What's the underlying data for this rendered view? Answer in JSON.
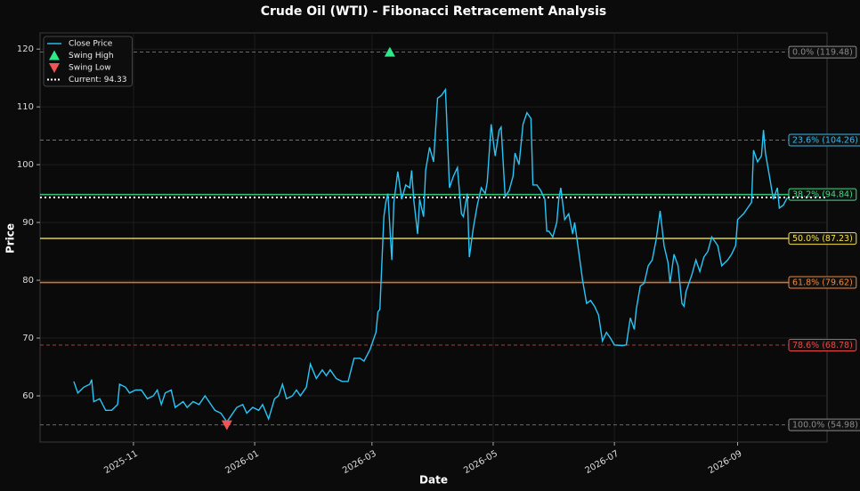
{
  "chart_data": {
    "type": "line",
    "title": "Crude Oil (WTI) - Fibonacci Retracement Analysis",
    "xlabel": "Date",
    "ylabel": "Price",
    "xlim": [
      14,
      410
    ],
    "ylim": [
      52.0,
      122.8
    ],
    "xticks": [
      {
        "value": 61,
        "label": "2025-11"
      },
      {
        "value": 122,
        "label": "2026-01"
      },
      {
        "value": 181,
        "label": "2026-03"
      },
      {
        "value": 242,
        "label": "2026-05"
      },
      {
        "value": 303,
        "label": "2026-07"
      },
      {
        "value": 365,
        "label": "2026-09"
      }
    ],
    "yticks": [
      60,
      70,
      80,
      90,
      100,
      110,
      120
    ],
    "grid": true,
    "legend": "upper left",
    "series": [
      {
        "name": "Close Price",
        "color": "#29c5f6",
        "x": [
          31,
          33,
          36,
          39,
          40,
          41,
          44,
          47,
          50,
          53,
          54,
          57,
          59,
          62,
          65,
          68,
          71,
          73,
          75,
          77,
          80,
          82,
          86,
          88,
          91,
          94,
          97,
          99,
          102,
          105,
          108,
          110,
          113,
          116,
          118,
          121,
          124,
          126,
          129,
          132,
          134,
          136,
          138,
          141,
          143,
          145,
          148,
          150,
          153,
          156,
          158,
          160,
          163,
          166,
          169,
          172,
          175,
          177,
          180,
          183,
          184,
          185,
          187,
          188,
          189,
          191,
          192,
          194,
          196,
          198,
          200,
          201,
          202,
          204,
          205,
          207,
          208,
          210,
          212,
          214,
          216,
          218,
          220,
          222,
          224,
          226,
          227,
          229,
          230,
          232,
          234,
          236,
          238,
          239,
          241,
          243,
          245,
          246,
          248,
          250,
          252,
          253,
          255,
          257,
          259,
          261,
          262,
          264,
          266,
          268,
          269,
          270,
          272,
          274,
          275,
          276,
          278,
          280,
          282,
          283,
          285,
          287,
          289,
          291,
          293,
          295,
          297,
          299,
          301,
          303,
          304,
          307,
          309,
          311,
          313,
          314,
          316,
          318,
          320,
          322,
          324,
          326,
          328,
          330,
          331,
          333,
          335,
          337,
          338,
          339,
          342,
          344,
          346,
          348,
          350,
          352,
          355,
          357,
          360,
          362,
          364,
          365,
          368,
          370,
          372,
          373,
          375,
          377,
          378,
          379,
          381,
          383,
          385,
          386,
          388,
          390
        ],
        "values": [
          62.5,
          60.5,
          61.5,
          62,
          62.8,
          59,
          59.5,
          57.5,
          57.5,
          58.5,
          62,
          61.5,
          60.5,
          61,
          61,
          59.5,
          60,
          61,
          58.5,
          60.5,
          61,
          58,
          59,
          58,
          59,
          58.5,
          60,
          59,
          57.5,
          57,
          55.5,
          56.5,
          58,
          58.5,
          57,
          58,
          57.5,
          58.5,
          56,
          59.5,
          60,
          62,
          59.5,
          60,
          61,
          60,
          61.5,
          65.5,
          63,
          64.5,
          63.5,
          64.5,
          63,
          62.5,
          62.5,
          66.5,
          66.5,
          66,
          68,
          71,
          74.5,
          75,
          91,
          93.5,
          95,
          83.5,
          93.5,
          98.8,
          94,
          96.5,
          96,
          99,
          94,
          88,
          94,
          91,
          99,
          103,
          100.5,
          111.5,
          112,
          113,
          96,
          98,
          99.5,
          91.5,
          91,
          95,
          84,
          89,
          93,
          96,
          95,
          97,
          107,
          101.5,
          106,
          106.5,
          94.5,
          95.5,
          98,
          102,
          100,
          107,
          109,
          108,
          96.5,
          96.5,
          95.5,
          94,
          88.5,
          88.5,
          87.5,
          90,
          94,
          96,
          90.5,
          91.5,
          88,
          90,
          85,
          80,
          76,
          76.5,
          75.5,
          74,
          69.5,
          71,
          70,
          68.8,
          68.78,
          68.7,
          68.8,
          73.5,
          71.5,
          75,
          79,
          79.5,
          82.5,
          83.5,
          87,
          92,
          86,
          83,
          79.5,
          84.5,
          82.5,
          76,
          75.5,
          78,
          81,
          83.5,
          81.5,
          84,
          85,
          87.5,
          86,
          82.5,
          83.5,
          84.5,
          86,
          90.5,
          91.5,
          92.5,
          93.5,
          102.5,
          100.5,
          101.5,
          106,
          102,
          98,
          94,
          96,
          92.5,
          93,
          94.3
        ]
      }
    ],
    "swing_high": {
      "name": "Swing High",
      "color": "#2ee88a",
      "x": 190,
      "value": 119.48
    },
    "swing_low": {
      "name": "Swing Low",
      "color": "#f05454",
      "x": 108,
      "value": 54.98
    },
    "current": {
      "name": "Current: 94.33",
      "color": "#ffffff",
      "value": 94.33
    },
    "levels": [
      {
        "label": "0.0% (119.48)",
        "value": 119.48,
        "color": "#8a8a8a",
        "style": "dashed"
      },
      {
        "label": "23.6% (104.26)",
        "value": 104.26,
        "color": "#3bb6e8",
        "style": "dashed"
      },
      {
        "label": "38.2% (94.84)",
        "value": 94.84,
        "color": "#3ddc84",
        "style": "solid"
      },
      {
        "label": "50.0% (87.23)",
        "value": 87.23,
        "color": "#f2e04a",
        "style": "solid"
      },
      {
        "label": "61.8% (79.62)",
        "value": 79.62,
        "color": "#f2873a",
        "style": "solid"
      },
      {
        "label": "78.6% (68.78)",
        "value": 68.78,
        "color": "#e84a4a",
        "style": "dashed"
      },
      {
        "label": "100.0% (54.98)",
        "value": 54.98,
        "color": "#8a8a8a",
        "style": "dashed"
      }
    ]
  }
}
